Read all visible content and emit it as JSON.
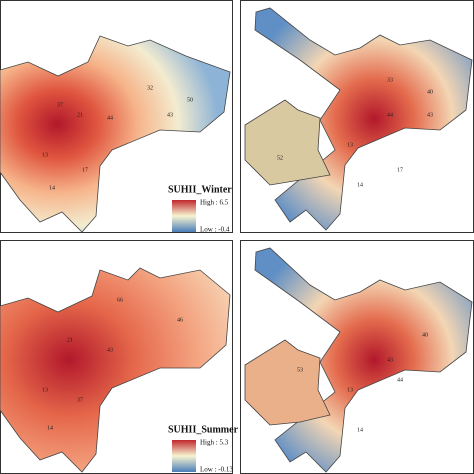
{
  "panels": [
    {
      "labels": [
        "32",
        "50",
        "44",
        "21",
        "13",
        "14",
        "37",
        "17",
        "43"
      ],
      "legend": {
        "title": "SUHII_Winter",
        "high": "High : 6.5",
        "low": "Low : -0.4"
      }
    },
    {
      "labels": [
        "40",
        "52",
        "44",
        "13",
        "14",
        "17",
        "33",
        "43"
      ]
    },
    {
      "labels": [
        "66",
        "46",
        "43",
        "13",
        "14",
        "37",
        "21"
      ],
      "legend": {
        "title": "SUHII_Summer",
        "high": "High : 5.3",
        "low": "Low : -0.13"
      }
    },
    {
      "labels": [
        "40",
        "43",
        "13",
        "14",
        "53",
        "44"
      ]
    }
  ]
}
